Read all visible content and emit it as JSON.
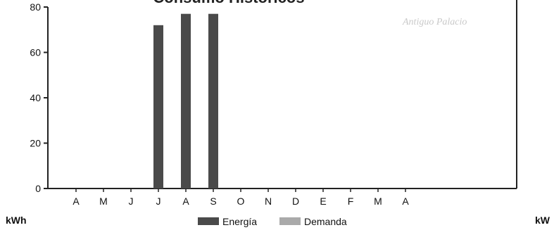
{
  "chart_data": {
    "type": "bar",
    "title": "Consumo Históricos",
    "categories": [
      "A",
      "M",
      "J",
      "J",
      "A",
      "S",
      "O",
      "N",
      "D",
      "E",
      "F",
      "M",
      "A"
    ],
    "series": [
      {
        "name": "Energía",
        "color": "#4a4a4a",
        "values": [
          0,
          0,
          0,
          72,
          77,
          77,
          0,
          0,
          0,
          0,
          0,
          0,
          0
        ]
      },
      {
        "name": "Demanda",
        "color": "#aaaaaa",
        "values": [
          0,
          0,
          0,
          0,
          0,
          0,
          0,
          0,
          0,
          0,
          0,
          0,
          0
        ]
      }
    ],
    "y_ticks": [
      0,
      20,
      40,
      60,
      80
    ],
    "ylim": [
      0,
      80
    ],
    "ylabel_left": "kWh",
    "ylabel_right": "kW",
    "grid": false,
    "legend_position": "bottom-center"
  },
  "background_text": "Antiguo Palacio"
}
